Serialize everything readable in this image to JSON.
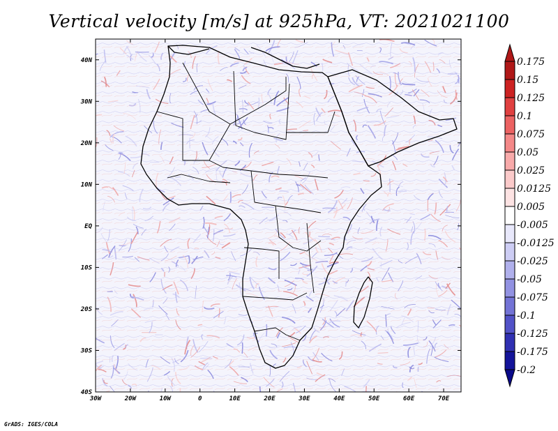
{
  "title": "Vertical velocity [m/s] at 925hPa, VT: 2021021100",
  "credit": "GrADS: IGES/COLA",
  "map": {
    "lat_labels": [
      "40N",
      "30N",
      "20N",
      "10N",
      "EQ",
      "10S",
      "20S",
      "30S",
      "40S"
    ],
    "lon_labels": [
      "30W",
      "20W",
      "10W",
      "0",
      "10E",
      "20E",
      "30E",
      "40E",
      "50E",
      "60E",
      "70E"
    ],
    "lat_range": [
      -40,
      45
    ],
    "lon_range": [
      -30,
      75
    ]
  },
  "colorbar": {
    "labels": [
      "0.175",
      "0.15",
      "0.125",
      "0.1",
      "0.075",
      "0.05",
      "0.025",
      "0.0125",
      "0.005",
      "-0.005",
      "-0.0125",
      "-0.025",
      "-0.05",
      "-0.075",
      "-0.1",
      "-0.125",
      "-0.175",
      "-0.2"
    ],
    "colors": [
      "#b01818",
      "#cc2222",
      "#e04040",
      "#ec6262",
      "#f48888",
      "#f8aaaa",
      "#fbcaca",
      "#fde3e3",
      "#ffffff",
      "#e8e8fb",
      "#cdcdf4",
      "#b0b0ec",
      "#9292e2",
      "#7373d6",
      "#5252c8",
      "#3030b2",
      "#14149a"
    ]
  }
}
